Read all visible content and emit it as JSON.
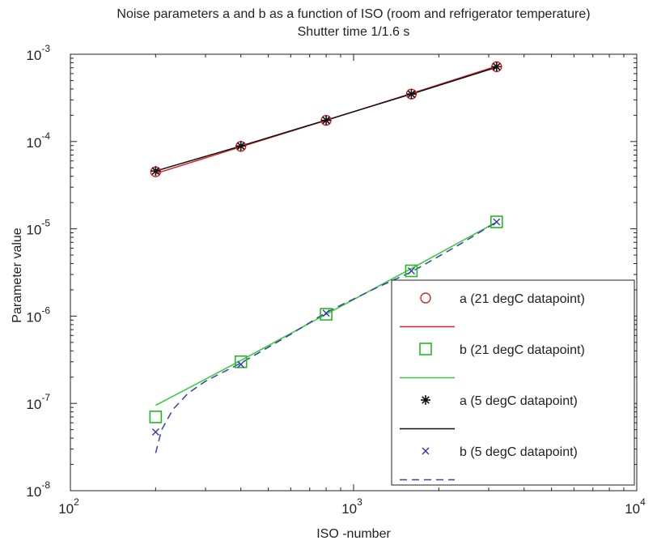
{
  "chart_data": {
    "type": "scatter",
    "title": "Noise parameters a and b as a function of ISO (room and refrigerator temperature)",
    "subtitle": "Shutter time 1/1.6 s",
    "xlabel": "ISO -number",
    "ylabel": "Parameter value",
    "xscale": "log",
    "yscale": "log",
    "xlim": [
      100,
      10000
    ],
    "ylim": [
      1e-08,
      0.001
    ],
    "grid": false,
    "legend_position": "bottom-right",
    "x_ticks": [
      {
        "value": 100,
        "base": "10",
        "exp": "2"
      },
      {
        "value": 1000,
        "base": "10",
        "exp": "3"
      },
      {
        "value": 10000,
        "base": "10",
        "exp": "4"
      }
    ],
    "y_ticks": [
      {
        "value": 1e-08,
        "base": "10",
        "exp": "-8"
      },
      {
        "value": 1e-07,
        "base": "10",
        "exp": "-7"
      },
      {
        "value": 1e-06,
        "base": "10",
        "exp": "-6"
      },
      {
        "value": 1e-05,
        "base": "10",
        "exp": "-5"
      },
      {
        "value": 0.0001,
        "base": "10",
        "exp": "-4"
      },
      {
        "value": 0.001,
        "base": "10",
        "exp": "-3"
      }
    ],
    "series": [
      {
        "name": "a (21 degC datapoint)",
        "kind": "marker",
        "marker": "circle",
        "color": "#dd2222",
        "x": [
          200,
          400,
          800,
          1600,
          3200
        ],
        "y": [
          4.5e-05,
          8.8e-05,
          0.000175,
          0.00035,
          0.00072
        ]
      },
      {
        "name": "",
        "kind": "line",
        "dash": "solid",
        "color": "#dd2222",
        "x": [
          200,
          400,
          800,
          1600,
          3200
        ],
        "y": [
          4.3e-05,
          8.7e-05,
          0.000175,
          0.000355,
          0.00073
        ]
      },
      {
        "name": "b (21 degC datapoint)",
        "kind": "marker",
        "marker": "square",
        "color": "#22bb22",
        "x": [
          200,
          400,
          800,
          1600,
          3200
        ],
        "y": [
          7e-08,
          3e-07,
          1.05e-06,
          3.3e-06,
          1.2e-05
        ]
      },
      {
        "name": "",
        "kind": "line",
        "dash": "solid",
        "color": "#33cc33",
        "x": [
          200,
          400,
          800,
          1600,
          3200
        ],
        "y": [
          9.5e-08,
          3.1e-07,
          1.05e-06,
          3.5e-06,
          1.2e-05
        ]
      },
      {
        "name": "a (5 degC datapoint)",
        "kind": "marker",
        "marker": "asterisk",
        "color": "#111111",
        "x": [
          200,
          400,
          800,
          1600,
          3200
        ],
        "y": [
          4.6e-05,
          8.9e-05,
          0.000175,
          0.00035,
          0.00072
        ]
      },
      {
        "name": "",
        "kind": "line",
        "dash": "solid",
        "color": "#111111",
        "x": [
          200,
          400,
          800,
          1600,
          3200
        ],
        "y": [
          4.6e-05,
          8.9e-05,
          0.000176,
          0.00035,
          0.00071
        ]
      },
      {
        "name": "b (5 degC datapoint)",
        "kind": "marker",
        "marker": "x",
        "color": "#3333aa",
        "x": [
          200,
          400,
          800,
          1600,
          3200
        ],
        "y": [
          4.7e-08,
          2.8e-07,
          1.08e-06,
          3.3e-06,
          1.2e-05
        ]
      },
      {
        "name": "",
        "kind": "line",
        "dash": "dashed",
        "color": "#3344aa",
        "x": [
          200,
          210,
          230,
          260,
          300,
          400,
          600,
          800,
          1200,
          1600,
          2400,
          3200
        ],
        "y": [
          2.7e-08,
          5e-08,
          8.5e-08,
          1.3e-07,
          1.8e-07,
          2.9e-07,
          6.2e-07,
          1.1e-06,
          2.1e-06,
          3.2e-06,
          6.8e-06,
          1.2e-05
        ]
      }
    ]
  }
}
